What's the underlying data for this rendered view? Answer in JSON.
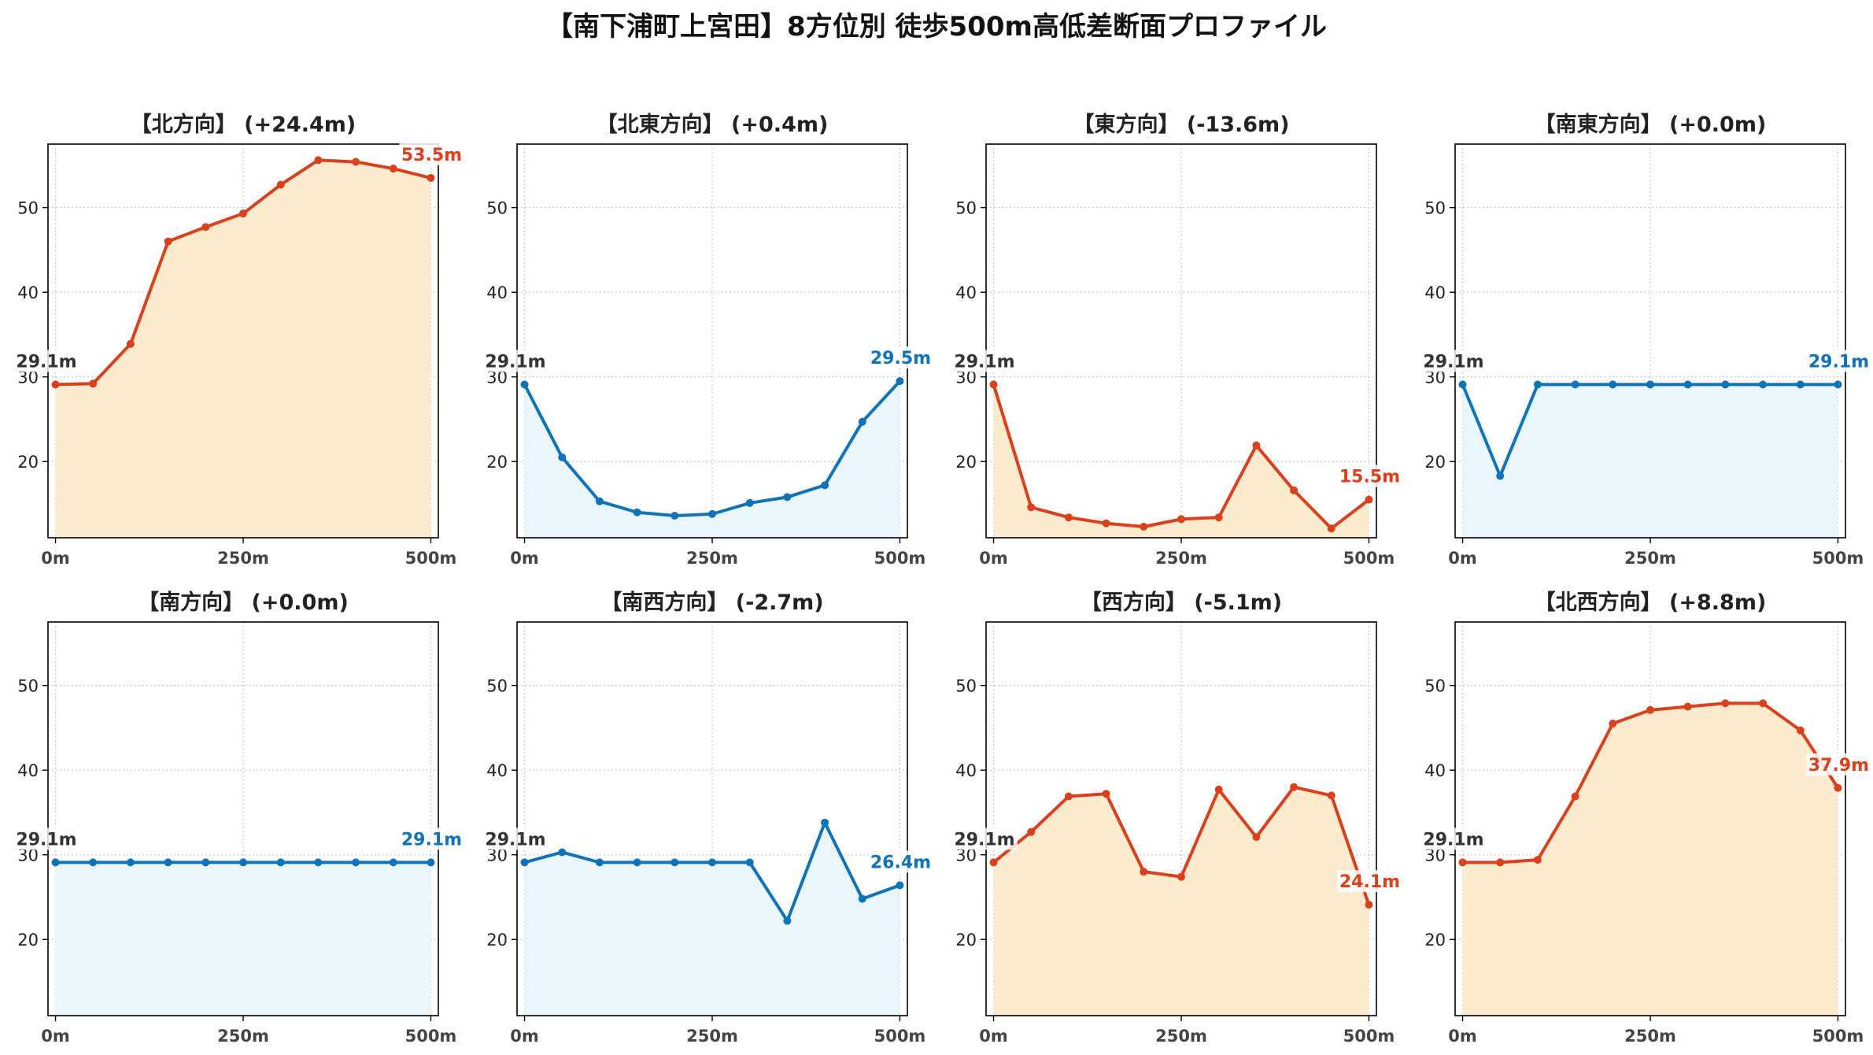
{
  "title": "【南下浦町上宮田】8方位別 徒歩500m高低差断面プロファイル",
  "colors": {
    "up_line": "#d9401b",
    "up_fill": "#fdebd0",
    "down_line": "#0f73b6",
    "down_fill": "#eaf6fc",
    "start_label": "#333333",
    "grid": "#c8c8c8"
  },
  "chart_data": [
    {
      "type": "area",
      "title": "【北方向】 (+24.4m)",
      "x": [
        0,
        50,
        100,
        150,
        200,
        250,
        300,
        350,
        400,
        450,
        500
      ],
      "y": [
        29.1,
        29.2,
        33.9,
        46.0,
        47.7,
        49.3,
        52.7,
        55.6,
        55.4,
        54.6,
        53.5
      ],
      "start_label": "29.1m",
      "end_label": "53.5m",
      "trend": "up",
      "xticks": [
        "0m",
        "250m",
        "500m"
      ],
      "yticks": [
        20,
        30,
        40,
        50
      ],
      "ylim": [
        11,
        57.5
      ],
      "xlim": [
        -10,
        510
      ],
      "grid": true
    },
    {
      "type": "area",
      "title": "【北東方向】 (+0.4m)",
      "x": [
        0,
        50,
        100,
        150,
        200,
        250,
        300,
        350,
        400,
        450,
        500
      ],
      "y": [
        29.1,
        20.5,
        15.3,
        14.0,
        13.6,
        13.8,
        15.1,
        15.8,
        17.2,
        24.7,
        29.5
      ],
      "start_label": "29.1m",
      "end_label": "29.5m",
      "trend": "down",
      "xticks": [
        "0m",
        "250m",
        "500m"
      ],
      "yticks": [
        20,
        30,
        40,
        50
      ],
      "ylim": [
        11,
        57.5
      ],
      "xlim": [
        -10,
        510
      ],
      "grid": true
    },
    {
      "type": "area",
      "title": "【東方向】 (-13.6m)",
      "x": [
        0,
        50,
        100,
        150,
        200,
        250,
        300,
        350,
        400,
        450,
        500
      ],
      "y": [
        29.1,
        14.6,
        13.4,
        12.7,
        12.3,
        13.2,
        13.4,
        21.9,
        16.6,
        12.1,
        15.5
      ],
      "start_label": "29.1m",
      "end_label": "15.5m",
      "trend": "up",
      "xticks": [
        "0m",
        "250m",
        "500m"
      ],
      "yticks": [
        20,
        30,
        40,
        50
      ],
      "ylim": [
        11,
        57.5
      ],
      "xlim": [
        -10,
        510
      ],
      "grid": true
    },
    {
      "type": "area",
      "title": "【南東方向】 (+0.0m)",
      "x": [
        0,
        50,
        100,
        150,
        200,
        250,
        300,
        350,
        400,
        450,
        500
      ],
      "y": [
        29.1,
        18.3,
        29.1,
        29.1,
        29.1,
        29.1,
        29.1,
        29.1,
        29.1,
        29.1,
        29.1
      ],
      "start_label": "29.1m",
      "end_label": "29.1m",
      "trend": "down",
      "xticks": [
        "0m",
        "250m",
        "500m"
      ],
      "yticks": [
        20,
        30,
        40,
        50
      ],
      "ylim": [
        11,
        57.5
      ],
      "xlim": [
        -10,
        510
      ],
      "grid": true
    },
    {
      "type": "area",
      "title": "【南方向】 (+0.0m)",
      "x": [
        0,
        50,
        100,
        150,
        200,
        250,
        300,
        350,
        400,
        450,
        500
      ],
      "y": [
        29.1,
        29.1,
        29.1,
        29.1,
        29.1,
        29.1,
        29.1,
        29.1,
        29.1,
        29.1,
        29.1
      ],
      "start_label": "29.1m",
      "end_label": "29.1m",
      "trend": "down",
      "xticks": [
        "0m",
        "250m",
        "500m"
      ],
      "yticks": [
        20,
        30,
        40,
        50
      ],
      "ylim": [
        11,
        57.5
      ],
      "xlim": [
        -10,
        510
      ],
      "grid": true
    },
    {
      "type": "area",
      "title": "【南西方向】 (-2.7m)",
      "x": [
        0,
        50,
        100,
        150,
        200,
        250,
        300,
        350,
        400,
        450,
        500
      ],
      "y": [
        29.1,
        30.3,
        29.1,
        29.1,
        29.1,
        29.1,
        29.1,
        22.2,
        33.8,
        24.8,
        26.4
      ],
      "start_label": "29.1m",
      "end_label": "26.4m",
      "trend": "down",
      "xticks": [
        "0m",
        "250m",
        "500m"
      ],
      "yticks": [
        20,
        30,
        40,
        50
      ],
      "ylim": [
        11,
        57.5
      ],
      "xlim": [
        -10,
        510
      ],
      "grid": true
    },
    {
      "type": "area",
      "title": "【西方向】 (-5.1m)",
      "x": [
        0,
        50,
        100,
        150,
        200,
        250,
        300,
        350,
        400,
        450,
        500
      ],
      "y": [
        29.1,
        32.7,
        36.9,
        37.2,
        28.0,
        27.4,
        37.7,
        32.1,
        38.0,
        37.0,
        24.1
      ],
      "start_label": "29.1m",
      "end_label": "24.1m",
      "trend": "up",
      "xticks": [
        "0m",
        "250m",
        "500m"
      ],
      "yticks": [
        20,
        30,
        40,
        50
      ],
      "ylim": [
        11,
        57.5
      ],
      "xlim": [
        -10,
        510
      ],
      "grid": true
    },
    {
      "type": "area",
      "title": "【北西方向】 (+8.8m)",
      "x": [
        0,
        50,
        100,
        150,
        200,
        250,
        300,
        350,
        400,
        450,
        500
      ],
      "y": [
        29.1,
        29.1,
        29.4,
        36.9,
        45.5,
        47.1,
        47.5,
        47.9,
        47.9,
        44.7,
        37.9
      ],
      "start_label": "29.1m",
      "end_label": "37.9m",
      "trend": "up",
      "xticks": [
        "0m",
        "250m",
        "500m"
      ],
      "yticks": [
        20,
        30,
        40,
        50
      ],
      "ylim": [
        11,
        57.5
      ],
      "xlim": [
        -10,
        510
      ],
      "grid": true
    }
  ]
}
